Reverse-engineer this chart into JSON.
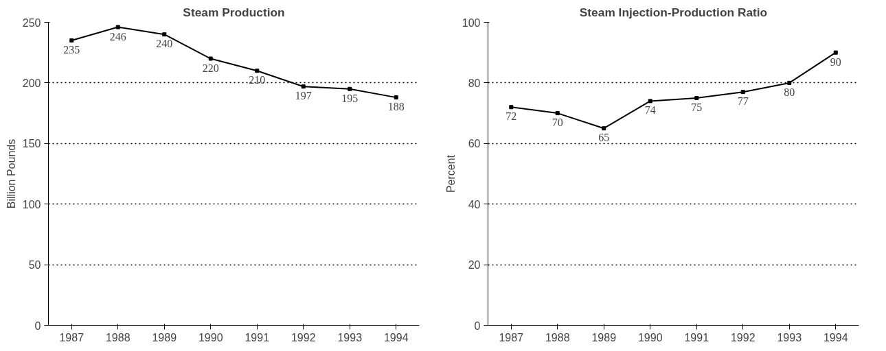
{
  "chart_data": [
    {
      "type": "line",
      "title": "Steam Production",
      "ylabel": "Billion Pounds",
      "categories": [
        "1987",
        "1988",
        "1989",
        "1990",
        "1991",
        "1992",
        "1993",
        "1994"
      ],
      "series": [
        {
          "color": "#000000",
          "values": [
            235,
            246,
            240,
            220,
            210,
            197,
            195,
            188
          ]
        }
      ],
      "ylim": [
        0,
        250
      ],
      "yticks": [
        0,
        50,
        100,
        150,
        200,
        250
      ],
      "grid": "y",
      "marker": "square",
      "line_style": "solid",
      "data_labels": true
    },
    {
      "type": "line",
      "title": "Steam Injection-Production Ratio",
      "ylabel": "Percent",
      "categories": [
        "1987",
        "1988",
        "1989",
        "1990",
        "1991",
        "1992",
        "1993",
        "1994"
      ],
      "series": [
        {
          "color": "#000000",
          "values": [
            72,
            70,
            65,
            74,
            75,
            77,
            80,
            90
          ]
        }
      ],
      "ylim": [
        0,
        100
      ],
      "yticks": [
        0,
        20,
        40,
        60,
        80,
        100
      ],
      "grid": "y",
      "marker": "square",
      "line_style": "solid",
      "data_labels": true
    }
  ]
}
